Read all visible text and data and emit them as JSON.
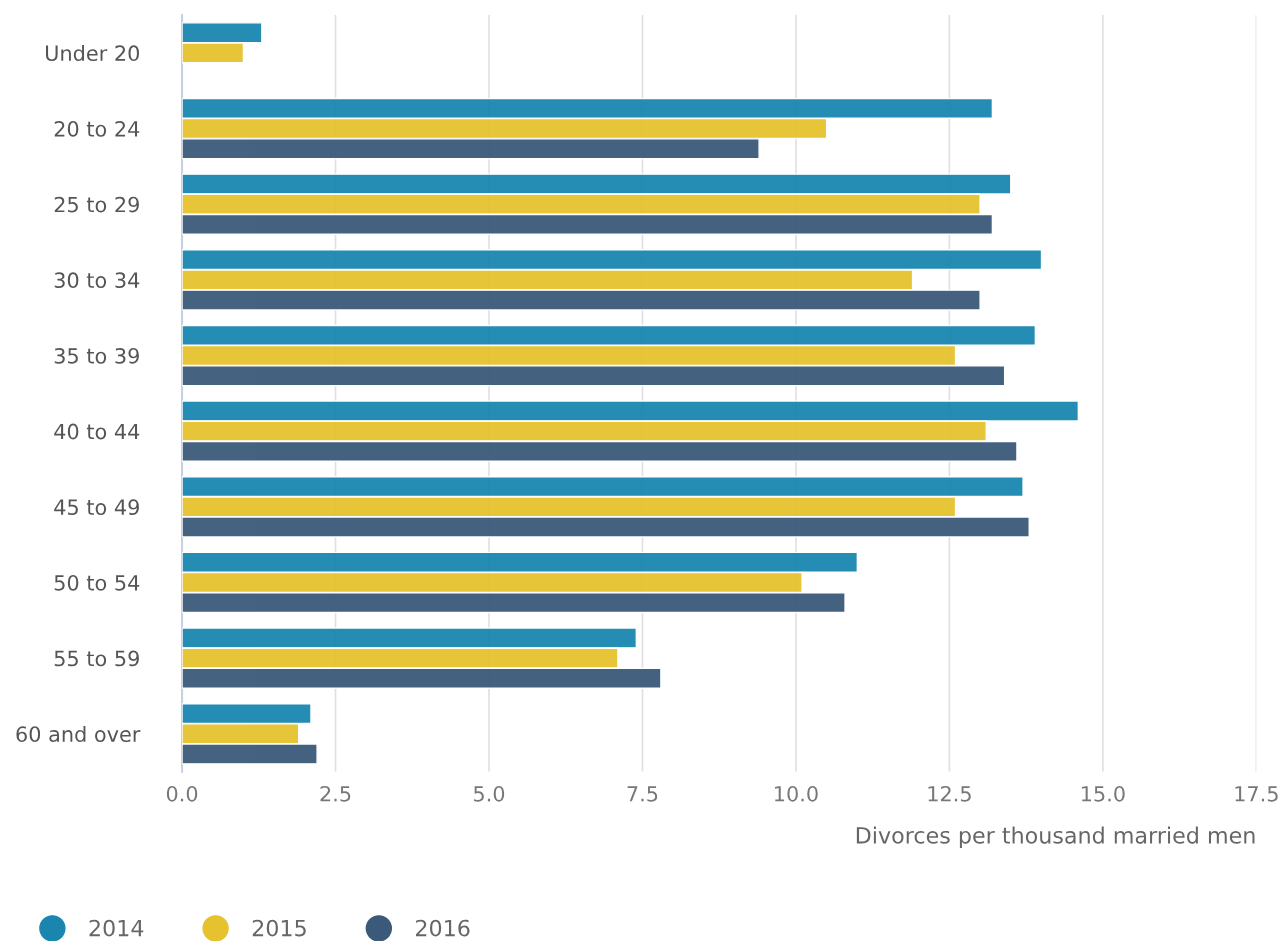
{
  "chart_data": {
    "type": "bar",
    "orientation": "horizontal",
    "xlabel": "Divorces per thousand married men",
    "categories": [
      "Under 20",
      "20 to 24",
      "25 to 29",
      "30 to 34",
      "35 to 39",
      "40 to 44",
      "45 to 49",
      "50 to 54",
      "55 to 59",
      "60 and over"
    ],
    "series": [
      {
        "name": "2014",
        "color": "#1a86b0",
        "values": [
          1.3,
          13.2,
          13.5,
          14.0,
          13.9,
          14.6,
          13.7,
          11.0,
          7.4,
          2.1
        ]
      },
      {
        "name": "2015",
        "color": "#e6c22f",
        "values": [
          1.0,
          10.5,
          13.0,
          11.9,
          12.6,
          13.1,
          12.6,
          10.1,
          7.1,
          1.9
        ]
      },
      {
        "name": "2016",
        "color": "#3b5a7a",
        "values": [
          null,
          9.4,
          13.2,
          13.0,
          13.4,
          13.6,
          13.8,
          10.8,
          7.8,
          2.2
        ]
      }
    ],
    "xlim": [
      0,
      17.5
    ],
    "xticks": [
      {
        "value": 0,
        "label": "0.0"
      },
      2.5,
      {
        "value": 5,
        "label": "5.0"
      },
      7.5,
      {
        "value": 10,
        "label": "10.0"
      },
      12.5,
      {
        "value": 15,
        "label": "15.0"
      },
      17.5
    ],
    "grid": "x",
    "legend": "bottom left"
  }
}
